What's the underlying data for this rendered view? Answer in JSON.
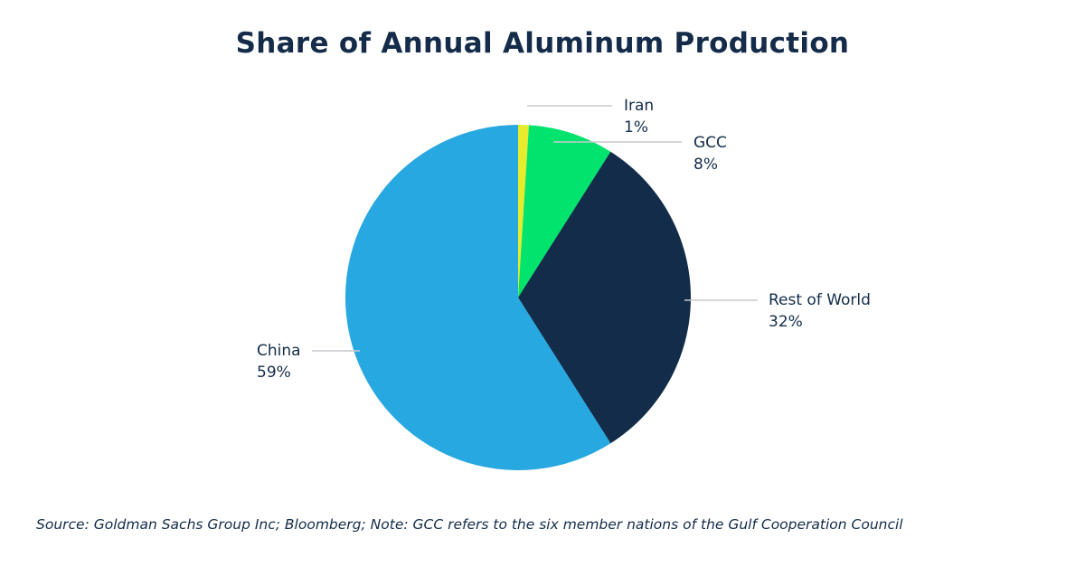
{
  "chart_data": {
    "type": "pie",
    "title": "Share of Annual Aluminum Production",
    "slices": [
      {
        "label": "Iran",
        "value": 1,
        "value_label": "1%",
        "color": "#e6ec2b"
      },
      {
        "label": "GCC",
        "value": 8,
        "value_label": "8%",
        "color": "#00e36c"
      },
      {
        "label": "Rest of World",
        "value": 32,
        "value_label": "32%",
        "color": "#132c4a"
      },
      {
        "label": "China",
        "value": 59,
        "value_label": "59%",
        "color": "#27a8e0"
      }
    ],
    "start": "12 o'clock, clockwise",
    "label_style": "outside with leader lines"
  },
  "footer": {
    "source": "Source: Goldman Sachs Group Inc; Bloomberg; Note: GCC refers to the six member nations of the Gulf Cooperation Council"
  }
}
